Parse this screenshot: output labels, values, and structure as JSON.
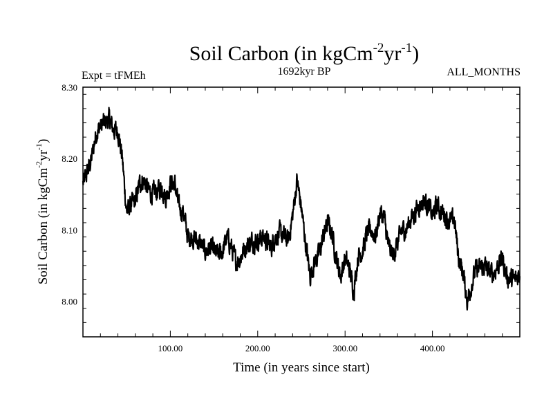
{
  "colors": {
    "line": "#000000",
    "background": "#ffffff",
    "frame": "#000000"
  },
  "header": {
    "title_main": "Soil Carbon (in kgCm",
    "title_exp1": "-2",
    "title_mid": "yr",
    "title_exp2": "-1",
    "title_end": ")",
    "experiment": "Expt = tFMEh",
    "period": "1692kyr BP",
    "months": "ALL_MONTHS"
  },
  "chart_data": {
    "type": "line",
    "title": "Soil Carbon (in kgCm-2yr-1)",
    "xlabel": "Time (in years since start)",
    "ylabel": "Soil Carbon (in kgCm-2yr-1)",
    "xlim": [
      0,
      500
    ],
    "ylim": [
      7.95,
      8.3
    ],
    "x_ticks": [
      100,
      200,
      300,
      400
    ],
    "x_tick_labels": [
      "100.00",
      "200.00",
      "300.00",
      "400.00"
    ],
    "y_ticks": [
      8.0,
      8.1,
      8.2,
      8.3
    ],
    "y_tick_labels": [
      "8.00",
      "8.10",
      "8.20",
      "8.30"
    ],
    "noise_amplitude": 0.011,
    "series": [
      {
        "name": "Soil Carbon",
        "x": [
          0,
          5,
          10,
          15,
          20,
          25,
          30,
          35,
          40,
          45,
          50,
          55,
          60,
          65,
          70,
          75,
          80,
          85,
          90,
          95,
          100,
          105,
          110,
          115,
          120,
          125,
          130,
          135,
          140,
          145,
          150,
          155,
          160,
          165,
          170,
          175,
          180,
          185,
          190,
          195,
          200,
          205,
          210,
          215,
          220,
          225,
          230,
          235,
          240,
          245,
          250,
          255,
          260,
          265,
          270,
          275,
          280,
          285,
          290,
          295,
          300,
          305,
          310,
          315,
          320,
          325,
          330,
          335,
          340,
          345,
          350,
          355,
          360,
          365,
          370,
          375,
          380,
          385,
          390,
          395,
          400,
          405,
          410,
          415,
          420,
          425,
          430,
          435,
          440,
          445,
          450,
          455,
          460,
          465,
          470,
          475,
          480,
          485,
          490,
          495,
          500
        ],
        "values": [
          8.165,
          8.18,
          8.2,
          8.235,
          8.245,
          8.25,
          8.255,
          8.24,
          8.24,
          8.2,
          8.125,
          8.135,
          8.14,
          8.165,
          8.17,
          8.155,
          8.15,
          8.155,
          8.16,
          8.145,
          8.165,
          8.165,
          8.13,
          8.125,
          8.09,
          8.09,
          8.085,
          8.08,
          8.07,
          8.075,
          8.07,
          8.065,
          8.07,
          8.09,
          8.075,
          8.055,
          8.06,
          8.075,
          8.08,
          8.085,
          8.085,
          8.09,
          8.085,
          8.075,
          8.09,
          8.095,
          8.09,
          8.085,
          8.12,
          8.17,
          8.13,
          8.08,
          8.035,
          8.055,
          8.065,
          8.09,
          8.11,
          8.095,
          8.06,
          8.035,
          8.06,
          8.045,
          8.015,
          8.065,
          8.07,
          8.095,
          8.1,
          8.09,
          8.125,
          8.115,
          8.075,
          8.065,
          8.08,
          8.1,
          8.1,
          8.115,
          8.125,
          8.135,
          8.14,
          8.135,
          8.12,
          8.135,
          8.125,
          8.12,
          8.11,
          8.115,
          8.06,
          8.04,
          8.0,
          8.025,
          8.045,
          8.045,
          8.05,
          8.04,
          8.04,
          8.05,
          8.06,
          8.035,
          8.03,
          8.03,
          8.04
        ]
      }
    ]
  }
}
